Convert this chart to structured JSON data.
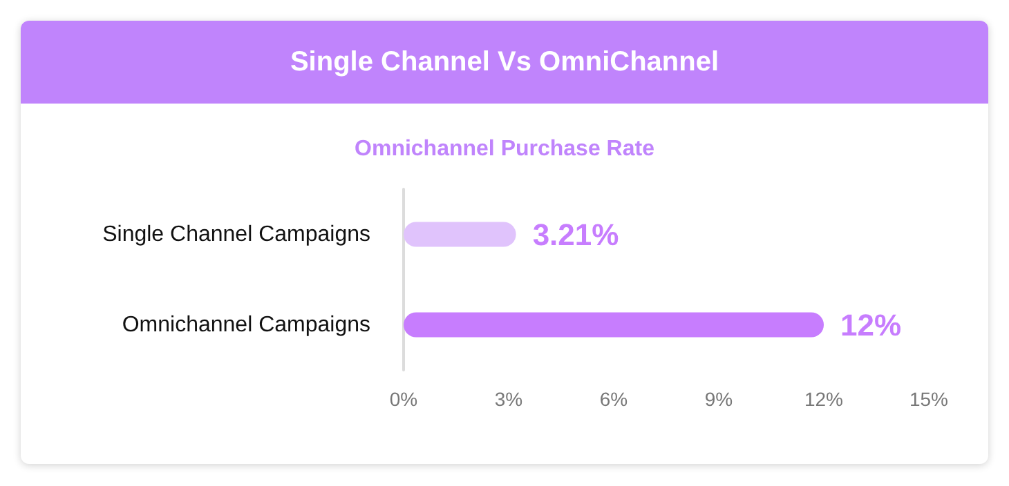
{
  "chart_data": {
    "type": "bar",
    "orientation": "horizontal",
    "title": "Single Channel Vs OmniChannel",
    "subtitle": "Omnichannel Purchase Rate",
    "categories": [
      "Single Channel Campaigns",
      "Omnichannel Campaigns"
    ],
    "values": [
      3.21,
      12
    ],
    "colors": [
      "#e0c3fc",
      "#c77dfe"
    ],
    "xlim": [
      0,
      15
    ],
    "xticks": [
      {
        "value": 0,
        "label": "0%"
      },
      {
        "value": 3,
        "label": "3%"
      },
      {
        "value": 6,
        "label": "6%"
      },
      {
        "value": 9,
        "label": "9%"
      },
      {
        "value": 12,
        "label": "12%"
      },
      {
        "value": 15,
        "label": "15%"
      }
    ],
    "value_labels": [
      "3.21%",
      "12%"
    ],
    "grid": false
  }
}
